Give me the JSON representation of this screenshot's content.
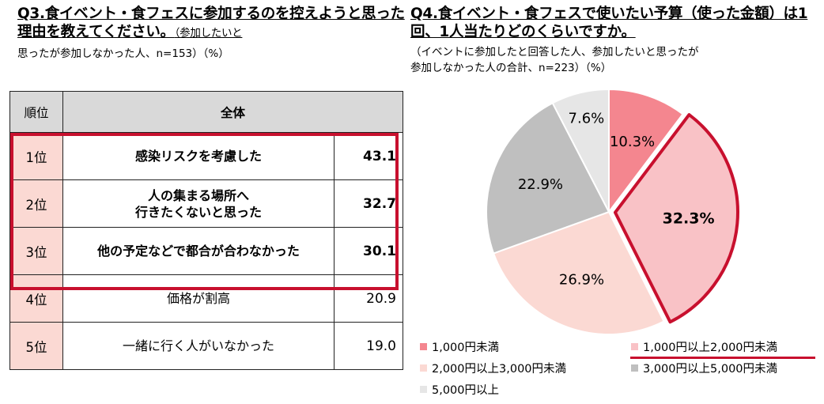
{
  "q3": {
    "title": "Q3.食イベント・食フェスに参加するのを控えようと思った理由を教えてください。",
    "note_line1": "（参加したいと",
    "note_line2": "思ったが参加しなかった人、n=153）（%）",
    "header_rank": "順位",
    "header_group": "全体",
    "rows": [
      {
        "rank": "1位",
        "item": "感染リスクを考慮した",
        "value": "43.1"
      },
      {
        "rank": "2位",
        "item_line1": "人の集まる場所へ",
        "item_line2": "行きたくないと思った",
        "value": "32.7"
      },
      {
        "rank": "3位",
        "item": "他の予定などで都合が合わなかった",
        "value": "30.1"
      },
      {
        "rank": "4位",
        "item": "価格が割高",
        "value": "20.9"
      },
      {
        "rank": "5位",
        "item": "一緒に行く人がいなかった",
        "value": "19.0"
      }
    ]
  },
  "q4": {
    "title": "Q4.食イベント・食フェスで使いたい予算（使った金額）は1回、1人当たりどのくらいですか。",
    "note_line1": "（イベントに参加したと回答した人、参加したいと思ったが",
    "note_line2": "参加しなかった人の合計、n=223）（%）"
  },
  "chart_data": {
    "type": "pie",
    "unit": "%",
    "start": "12 o'clock, clockwise",
    "highlighted": "1,000円以上2,000円未満",
    "slices": [
      {
        "label": "1,000円未満",
        "value": 10.3,
        "text": "10.3%",
        "color": "#f4868f"
      },
      {
        "label": "1,000円以上2,000円未満",
        "value": 32.3,
        "text": "32.3%",
        "color": "#f9c2c6"
      },
      {
        "label": "2,000円以上3,000円未満",
        "value": 26.9,
        "text": "26.9%",
        "color": "#fbd9d3"
      },
      {
        "label": "3,000円以上5,000円未満",
        "value": 22.9,
        "text": "22.9%",
        "color": "#bfbfbf"
      },
      {
        "label": "5,000円以上",
        "value": 7.6,
        "text": "7.6%",
        "color": "#e6e6e6"
      }
    ]
  }
}
